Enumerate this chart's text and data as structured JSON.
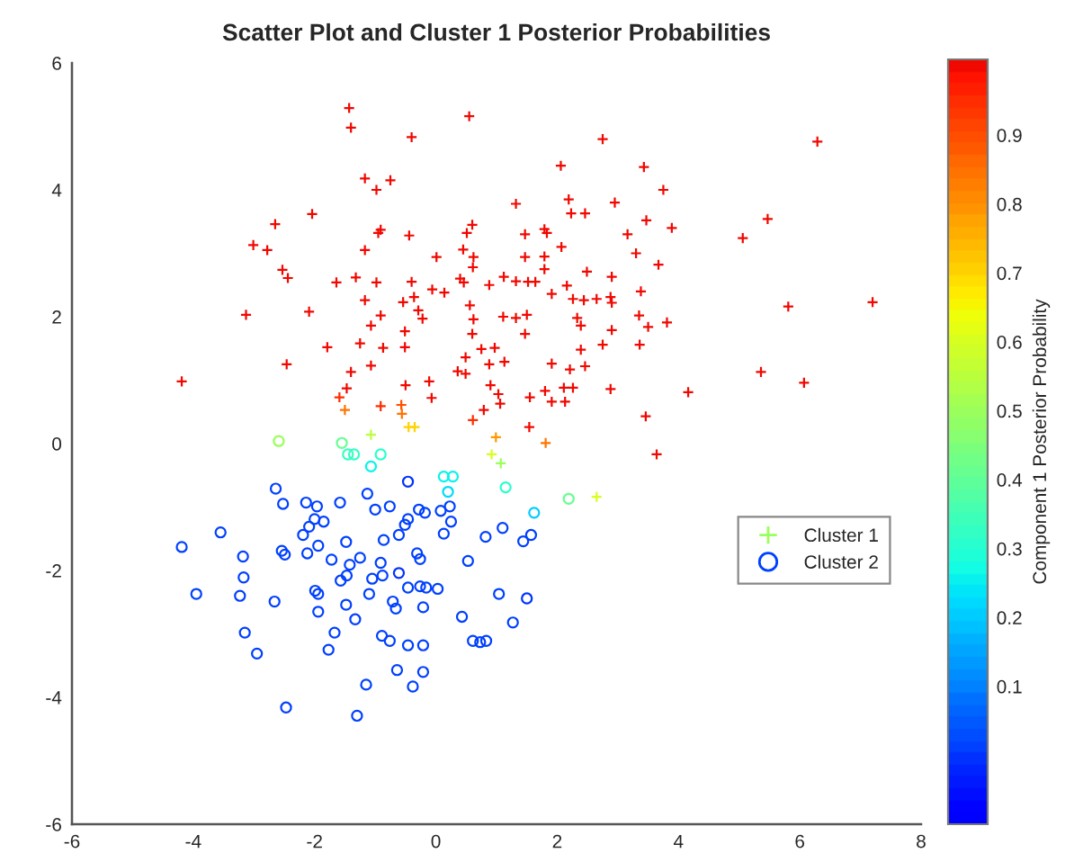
{
  "chart_data": {
    "type": "scatter",
    "title": "Scatter Plot and Cluster 1 Posterior Probabilities",
    "clabel": "Component 1 Posterior Probability",
    "xlim": [
      -6,
      8
    ],
    "xticks": [
      -6,
      -4,
      -2,
      0,
      2,
      4,
      6,
      8
    ],
    "ylim": [
      -6,
      6
    ],
    "yticks": [
      -6,
      -4,
      -2,
      0,
      2,
      4,
      6
    ],
    "clim": [
      -0.1,
      1.01
    ],
    "cticks": [
      0.1,
      0.2,
      0.3,
      0.4,
      0.5,
      0.6,
      0.7,
      0.8,
      0.9
    ],
    "legend": "right",
    "series": [
      {
        "name": "Cluster 1",
        "color": "#9aff5d",
        "marker": "cross",
        "x": [
          1.07,
          -1.43,
          -1.4,
          0.55,
          -0.4,
          -1.17,
          -0.75,
          -0.98,
          -2.04,
          -2.65,
          -0.95,
          -0.91,
          -0.44,
          0.51,
          0.6,
          -3.01,
          -2.78,
          -1.17,
          0.45,
          0.01,
          0.62,
          0.61,
          -2.53,
          -2.44,
          -1.64,
          -1.32,
          -0.98,
          -0.4,
          -0.06,
          0.14,
          0.4,
          0.46,
          0.88,
          1.12,
          1.32,
          -3.13,
          -2.09,
          -1.17,
          -0.54,
          -0.36,
          -0.29,
          -0.22,
          0.56,
          -0.91,
          -1.07,
          -0.51,
          0.62,
          0.6,
          1.11,
          -1.79,
          -1.25,
          -0.87,
          -0.51,
          0.49,
          0.75,
          0.97,
          1.13,
          0.88,
          -2.46,
          -1.07,
          -1.4,
          0.36,
          0.49,
          -4.19,
          -1.47,
          -0.5,
          -0.11,
          0.9,
          -1.59,
          -0.07,
          1.03,
          1.06,
          -0.91,
          -0.57,
          0.79,
          0.61,
          -1.5,
          -0.56,
          -0.45,
          -0.35,
          0.99,
          -1.07,
          2.75,
          6.29,
          2.06,
          3.43,
          3.75,
          1.32,
          2.19,
          2.23,
          2.46,
          2.95,
          3.47,
          5.47,
          1.79,
          1.83,
          1.47,
          2.07,
          3.16,
          3.89,
          5.06,
          3.3,
          1.47,
          1.79,
          1.79,
          3.67,
          2.49,
          2.9,
          1.52,
          1.64,
          2.16,
          3.38,
          1.91,
          2.26,
          2.44,
          2.65,
          2.88,
          2.9,
          7.2,
          5.81,
          1.5,
          1.32,
          2.33,
          2.39,
          3.35,
          3.5,
          3.81,
          1.47,
          2.9,
          2.39,
          2.75,
          3.36,
          1.91,
          2.21,
          2.46,
          5.36,
          6.07,
          1.55,
          1.8,
          1.91,
          2.11,
          2.26,
          2.13,
          2.88,
          4.16,
          1.54,
          3.46,
          1.81,
          3.64,
          0.92,
          2.65
        ],
        "values": [
          -0.31,
          5.29,
          4.98,
          5.16,
          4.83,
          4.18,
          4.15,
          4.0,
          3.62,
          3.46,
          3.32,
          3.37,
          3.28,
          3.32,
          3.45,
          3.13,
          3.05,
          3.05,
          3.06,
          2.94,
          2.94,
          2.78,
          2.74,
          2.61,
          2.54,
          2.62,
          2.54,
          2.55,
          2.43,
          2.38,
          2.6,
          2.54,
          2.5,
          2.63,
          2.56,
          2.03,
          2.08,
          2.26,
          2.23,
          2.31,
          2.1,
          1.97,
          2.18,
          2.02,
          1.86,
          1.77,
          1.96,
          1.73,
          2.0,
          1.52,
          1.58,
          1.51,
          1.52,
          1.36,
          1.49,
          1.51,
          1.29,
          1.25,
          1.25,
          1.23,
          1.13,
          1.14,
          1.1,
          0.98,
          0.87,
          0.92,
          0.98,
          0.92,
          0.73,
          0.72,
          0.78,
          0.63,
          0.59,
          0.61,
          0.53,
          0.37,
          0.53,
          0.47,
          0.26,
          0.26,
          0.1,
          0.14,
          4.8,
          4.76,
          4.38,
          4.36,
          4.0,
          3.78,
          3.85,
          3.63,
          3.63,
          3.8,
          3.52,
          3.54,
          3.38,
          3.32,
          3.3,
          3.1,
          3.3,
          3.4,
          3.24,
          3.0,
          2.94,
          2.95,
          2.75,
          2.82,
          2.71,
          2.63,
          2.55,
          2.55,
          2.49,
          2.4,
          2.36,
          2.28,
          2.26,
          2.28,
          2.31,
          2.22,
          2.23,
          2.16,
          2.03,
          1.98,
          1.98,
          1.86,
          2.02,
          1.84,
          1.91,
          1.73,
          1.79,
          1.48,
          1.56,
          1.56,
          1.26,
          1.17,
          1.22,
          1.13,
          0.96,
          0.73,
          0.83,
          0.66,
          0.88,
          0.88,
          0.66,
          0.86,
          0.81,
          0.26,
          0.43,
          0.01,
          -0.17,
          -0.17,
          -0.84
        ],
        "colors": [
          "#9aff5d",
          "#f10800",
          "#f10800",
          "#f10800",
          "#f10800",
          "#f10800",
          "#f10800",
          "#f10800",
          "#f10800",
          "#f10800",
          "#f10800",
          "#f10800",
          "#f10800",
          "#f10800",
          "#f10800",
          "#f10800",
          "#f10800",
          "#f10800",
          "#f10800",
          "#f10800",
          "#f10800",
          "#f10800",
          "#f10800",
          "#f10800",
          "#f10800",
          "#f10800",
          "#f10800",
          "#f10800",
          "#f10800",
          "#f10800",
          "#f10800",
          "#f10800",
          "#f10800",
          "#f10800",
          "#f10800",
          "#f10800",
          "#f10800",
          "#f10800",
          "#f10800",
          "#f10800",
          "#f10800",
          "#f10800",
          "#f10800",
          "#f10800",
          "#f10800",
          "#f10800",
          "#f10800",
          "#f10800",
          "#f10800",
          "#f10800",
          "#f10800",
          "#f10800",
          "#f10800",
          "#f10800",
          "#f10800",
          "#f10800",
          "#f10800",
          "#f10800",
          "#f10800",
          "#f10800",
          "#f10800",
          "#f10800",
          "#f10800",
          "#f10800",
          "#f10800",
          "#f10800",
          "#f10800",
          "#f10800",
          "#ff2d00",
          "#f10800",
          "#f10800",
          "#f10800",
          "#ff2d00",
          "#ff5000",
          "#f10800",
          "#ff2d00",
          "#ff7400",
          "#ff7400",
          "#ffd200",
          "#ffd200",
          "#ff9700",
          "#b9ff3e",
          "#f10800",
          "#f10800",
          "#f10800",
          "#f10800",
          "#f10800",
          "#f10800",
          "#f10800",
          "#f10800",
          "#f10800",
          "#f10800",
          "#f10800",
          "#f10800",
          "#f10800",
          "#f10800",
          "#f10800",
          "#f10800",
          "#f10800",
          "#f10800",
          "#f10800",
          "#f10800",
          "#f10800",
          "#f10800",
          "#f10800",
          "#f10800",
          "#f10800",
          "#f10800",
          "#f10800",
          "#f10800",
          "#f10800",
          "#f10800",
          "#f10800",
          "#f10800",
          "#f10800",
          "#f10800",
          "#f10800",
          "#f10800",
          "#f10800",
          "#f10800",
          "#f10800",
          "#f10800",
          "#f10800",
          "#f10800",
          "#f10800",
          "#f10800",
          "#f10800",
          "#f10800",
          "#f10800",
          "#f10800",
          "#f10800",
          "#f10800",
          "#f10800",
          "#f10800",
          "#f10800",
          "#f10800",
          "#f10800",
          "#f10800",
          "#f10800",
          "#f10800",
          "#f10800",
          "#f10800",
          "#f10800",
          "#f10800",
          "#f10800",
          "#f10800",
          "#f10800",
          "#ff7400",
          "#f10800",
          "#d8ff1f",
          "#d8ff1f"
        ]
      },
      {
        "name": "Cluster 2",
        "color": "#0040ff",
        "marker": "circle",
        "x": [
          -2.64,
          -2.52,
          -2.14,
          -1.96,
          -1.58,
          -1.13,
          -1.0,
          -0.76,
          -0.46,
          -0.28,
          -0.18,
          0.08,
          0.23,
          0.25,
          0.13,
          -2.0,
          -1.85,
          -2.09,
          -2.19,
          -3.55,
          -4.19,
          -2.54,
          -2.49,
          -3.18,
          -2.12,
          -1.94,
          -1.48,
          -1.72,
          -0.86,
          -0.61,
          -0.51,
          -0.31,
          -0.26,
          -1.42,
          -1.25,
          -0.91,
          -0.61,
          -0.88,
          -1.05,
          -1.47,
          -1.57,
          -1.1,
          -1.94,
          -1.99,
          -0.46,
          -0.26,
          -0.16,
          0.03,
          -0.71,
          -0.66,
          -0.21,
          0.53,
          1.04,
          0.82,
          1.1,
          1.44,
          1.57,
          1.5,
          1.27,
          0.83,
          -3.17,
          -3.23,
          -3.95,
          -2.66,
          -1.94,
          -1.48,
          -1.33,
          0.43,
          -3.15,
          -2.95,
          -1.67,
          -1.77,
          -0.89,
          -0.76,
          -0.46,
          -0.21,
          0.61,
          0.73,
          -0.64,
          -0.21,
          -0.38,
          -1.15,
          -2.47,
          -1.3,
          -2.59,
          -1.55,
          -1.45,
          -1.35,
          -0.91,
          -1.07,
          1.15,
          2.19,
          1.62,
          -0.46,
          0.13,
          0.28,
          0.2
        ],
        "values": [
          -0.71,
          -0.95,
          -0.93,
          -0.99,
          -0.93,
          -0.79,
          -1.04,
          -0.99,
          -1.19,
          -1.04,
          -1.09,
          -1.06,
          -0.99,
          -1.23,
          -1.42,
          -1.19,
          -1.23,
          -1.31,
          -1.44,
          -1.4,
          -1.63,
          -1.69,
          -1.75,
          -1.78,
          -1.73,
          -1.61,
          -1.55,
          -1.83,
          -1.52,
          -1.44,
          -1.28,
          -1.73,
          -1.82,
          -1.91,
          -1.8,
          -1.88,
          -2.04,
          -2.08,
          -2.13,
          -2.08,
          -2.16,
          -2.37,
          -2.37,
          -2.32,
          -2.27,
          -2.25,
          -2.27,
          -2.29,
          -2.49,
          -2.6,
          -2.58,
          -1.85,
          -2.37,
          -1.47,
          -1.33,
          -1.54,
          -1.44,
          -2.44,
          -2.82,
          -3.11,
          -2.11,
          -2.4,
          -2.37,
          -2.49,
          -2.65,
          -2.54,
          -2.77,
          -2.73,
          -2.98,
          -3.31,
          -2.98,
          -3.25,
          -3.03,
          -3.11,
          -3.18,
          -3.18,
          -3.11,
          -3.13,
          -3.57,
          -3.6,
          -3.83,
          -3.8,
          -4.16,
          -4.29,
          0.04,
          0.01,
          -0.17,
          -0.17,
          -0.17,
          -0.36,
          -0.69,
          -0.87,
          -1.09,
          -0.6,
          -0.52,
          -0.52,
          -0.76
        ],
        "colors": [
          "#0040ff",
          "#0040ff",
          "#0040ff",
          "#0040ff",
          "#0040ff",
          "#0040ff",
          "#0040ff",
          "#0040ff",
          "#0040ff",
          "#0040ff",
          "#0040ff",
          "#0040ff",
          "#0040ff",
          "#0040ff",
          "#0040ff",
          "#0040ff",
          "#0040ff",
          "#0040ff",
          "#0040ff",
          "#0040ff",
          "#0040ff",
          "#0040ff",
          "#0040ff",
          "#0040ff",
          "#0040ff",
          "#0040ff",
          "#0040ff",
          "#0040ff",
          "#0040ff",
          "#0040ff",
          "#0040ff",
          "#0040ff",
          "#0040ff",
          "#0040ff",
          "#0040ff",
          "#0040ff",
          "#0033ff",
          "#0040ff",
          "#0040ff",
          "#0040ff",
          "#0040ff",
          "#0040ff",
          "#0040ff",
          "#0040ff",
          "#0040ff",
          "#0040ff",
          "#0040ff",
          "#0040ff",
          "#0040ff",
          "#0040ff",
          "#0040ff",
          "#0040ff",
          "#0040ff",
          "#0040ff",
          "#0040ff",
          "#0040ff",
          "#0040ff",
          "#0033ff",
          "#0040ff",
          "#0040ff",
          "#0040ff",
          "#0040ff",
          "#0040ff",
          "#0040ff",
          "#0040ff",
          "#0040ff",
          "#0040ff",
          "#0040ff",
          "#0040ff",
          "#0040ff",
          "#0040ff",
          "#0040ff",
          "#0040ff",
          "#0040ff",
          "#0040ff",
          "#0040ff",
          "#0040ff",
          "#0040ff",
          "#0040ff",
          "#0040ff",
          "#0040ff",
          "#0040ff",
          "#0040ff",
          "#0040ff",
          "#9aff5d",
          "#67ff90",
          "#33ffc3",
          "#33ffc3",
          "#29ffce",
          "#0af2ec",
          "#29ffce",
          "#67ff90",
          "#00ccff",
          "#0033ff",
          "#0af2ec",
          "#0af2ec",
          "#00d9ff"
        ]
      }
    ]
  }
}
